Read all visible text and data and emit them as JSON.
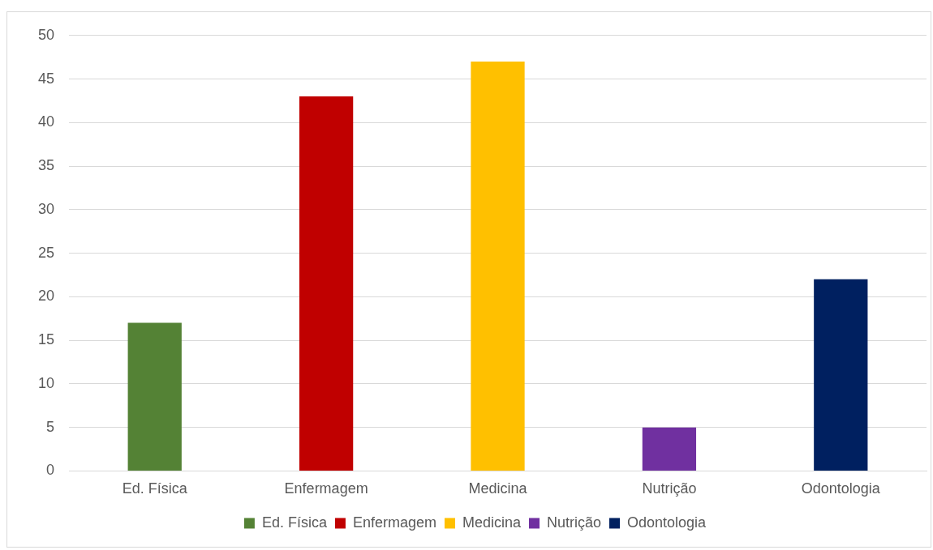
{
  "chart_data": {
    "type": "bar",
    "categories": [
      "Ed. Física",
      "Enfermagem",
      "Medicina",
      "Nutrição",
      "Odontologia"
    ],
    "series": [
      {
        "name": "Ed. Física",
        "color": "#548235",
        "values": [
          17,
          null,
          null,
          null,
          null
        ]
      },
      {
        "name": "Enfermagem",
        "color": "#c00000",
        "values": [
          null,
          43,
          null,
          null,
          null
        ]
      },
      {
        "name": "Medicina",
        "color": "#ffc000",
        "values": [
          null,
          null,
          47,
          null,
          null
        ]
      },
      {
        "name": "Nutrição",
        "color": "#7030a0",
        "values": [
          null,
          null,
          null,
          5,
          null
        ]
      },
      {
        "name": "Odontologia",
        "color": "#002060",
        "values": [
          null,
          null,
          null,
          null,
          22
        ]
      }
    ],
    "ylim": [
      0,
      50
    ],
    "yticks": [
      0,
      5,
      10,
      15,
      20,
      25,
      30,
      35,
      40,
      45,
      50
    ],
    "grid": "y",
    "legend": "bottom"
  }
}
